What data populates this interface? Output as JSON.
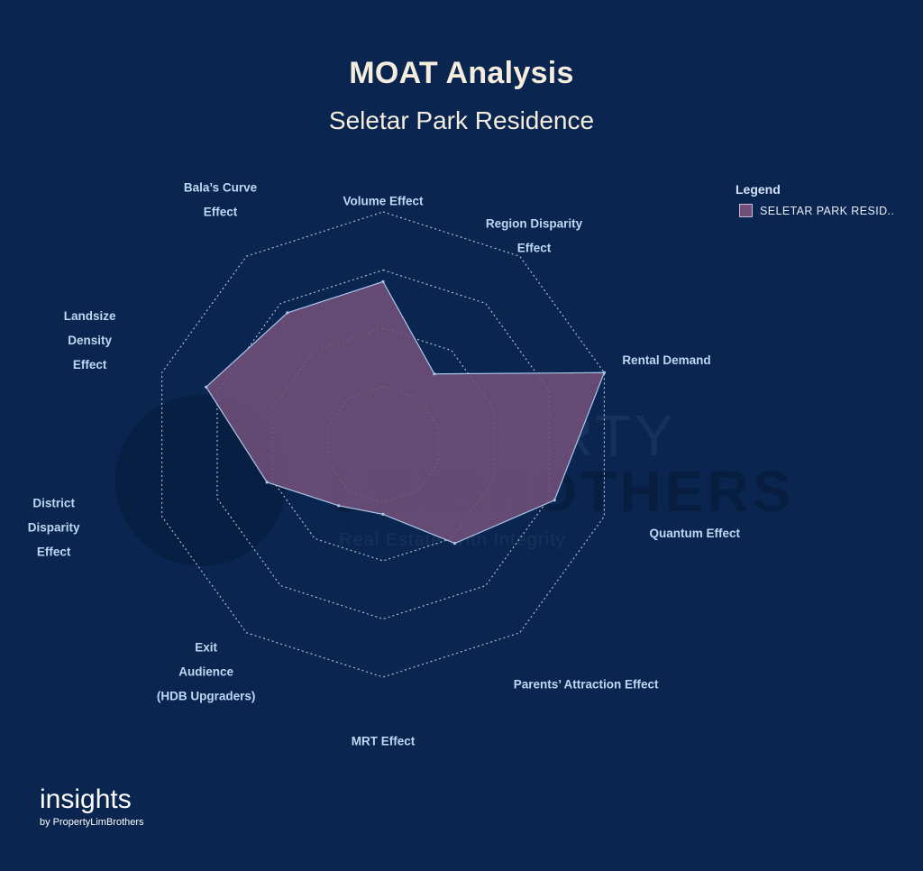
{
  "header": {
    "title": "MOAT Analysis",
    "subtitle": "Seletar Park Residence"
  },
  "legend": {
    "title": "Legend",
    "items": [
      {
        "label": "SELETAR PARK RESID..",
        "color": "#6f4f78"
      }
    ]
  },
  "watermark": {
    "line1": "PROPERTY",
    "line2": "LIMBROTHERS",
    "line3": "Real Estate With Integrity"
  },
  "brand": {
    "name": "insights",
    "tagline": "by PropertyLimBrothers"
  },
  "chart_data": {
    "type": "radar",
    "title": "MOAT Analysis",
    "subtitle": "Seletar Park Residence",
    "rings": 4,
    "range": [
      0,
      4
    ],
    "grid": true,
    "legend_position": "top-right",
    "colors": {
      "fill": "#6f4f78",
      "stroke": "#a9c6ea",
      "grid": "#ffffff"
    },
    "axes": [
      [
        "Volume Effect"
      ],
      [
        "Region Disparity",
        "Effect"
      ],
      [
        "Rental Demand"
      ],
      [
        "Quantum Effect"
      ],
      [
        "Parents’ Attraction Effect"
      ],
      [
        "MRT Effect"
      ],
      [
        "Exit",
        "Audience",
        "(HDB Upgraders)"
      ],
      [
        "District",
        "Disparity",
        "Effect"
      ],
      [
        "Landsize",
        "Density",
        "Effect"
      ],
      [
        "Bala’s Curve",
        "Effect"
      ]
    ],
    "series": [
      {
        "name": "SELETAR PARK RESID..",
        "values": [
          2.8,
          1.5,
          4.0,
          3.1,
          2.1,
          1.2,
          1.3,
          2.1,
          3.2,
          2.8
        ]
      }
    ]
  }
}
